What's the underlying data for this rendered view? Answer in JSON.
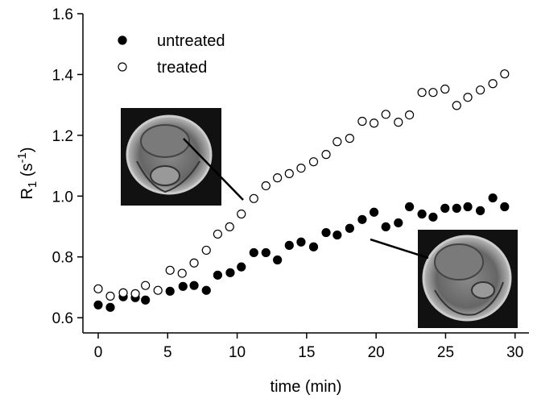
{
  "chart_data": {
    "type": "scatter",
    "xlabel": "time (min)",
    "ylabel": {
      "base": "R",
      "sub": "1",
      "mid": " (s",
      "sup": "-1",
      "end": ")"
    },
    "xlim": [
      -1.1,
      31
    ],
    "ylim": [
      0.55,
      1.6
    ],
    "xticks": [
      0,
      5,
      10,
      15,
      20,
      25,
      30
    ],
    "yticks": [
      0.6,
      0.8,
      {
        "value": 1,
        "label": "1.0"
      },
      1.2,
      1.4,
      1.6
    ],
    "legend": "top-left",
    "series": [
      {
        "name": "untreated",
        "color": "#000000",
        "filled": true,
        "x": [
          0,
          0.87,
          1.8,
          2.67,
          3.4,
          5.17,
          6.1,
          6.9,
          7.78,
          8.6,
          9.5,
          10.3,
          11.2,
          12.07,
          12.9,
          13.75,
          14.6,
          15.5,
          16.4,
          17.2,
          18.1,
          19.0,
          19.85,
          20.7,
          21.6,
          22.4,
          23.3,
          24.1,
          24.96,
          25.8,
          26.6,
          27.5,
          28.4,
          29.25
        ],
        "values": [
          0.642,
          0.634,
          0.669,
          0.666,
          0.658,
          0.687,
          0.703,
          0.706,
          0.69,
          0.74,
          0.748,
          0.767,
          0.814,
          0.814,
          0.79,
          0.838,
          0.849,
          0.833,
          0.88,
          0.872,
          0.894,
          0.923,
          0.947,
          0.899,
          0.912,
          0.965,
          0.941,
          0.931,
          0.96,
          0.96,
          0.965,
          0.952,
          0.994,
          0.965
        ]
      },
      {
        "name": "treated",
        "color": "#000000",
        "filled": false,
        "x": [
          0,
          0.87,
          1.8,
          2.67,
          3.4,
          4.3,
          5.17,
          6.04,
          6.9,
          7.78,
          8.6,
          9.46,
          10.3,
          11.2,
          12.07,
          12.9,
          13.75,
          14.6,
          15.5,
          16.4,
          17.2,
          18.1,
          19.0,
          19.85,
          20.7,
          21.6,
          22.4,
          23.3,
          24.1,
          24.96,
          25.8,
          26.6,
          27.5,
          28.4,
          29.25
        ],
        "values": [
          0.695,
          0.671,
          0.682,
          0.679,
          0.706,
          0.69,
          0.756,
          0.746,
          0.78,
          0.822,
          0.875,
          0.899,
          0.941,
          0.992,
          1.034,
          1.06,
          1.074,
          1.092,
          1.113,
          1.137,
          1.179,
          1.19,
          1.246,
          1.24,
          1.269,
          1.243,
          1.267,
          1.341,
          1.341,
          1.352,
          1.298,
          1.325,
          1.349,
          1.37,
          1.402
        ]
      }
    ]
  }
}
